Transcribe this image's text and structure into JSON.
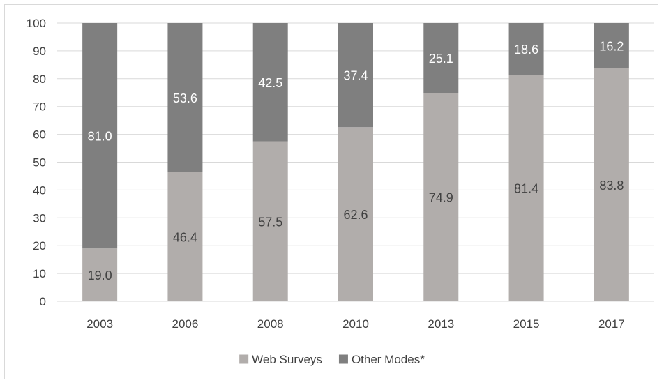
{
  "chart_data": {
    "type": "bar",
    "stacked": true,
    "title": "",
    "xlabel": "",
    "ylabel": "",
    "ylim": [
      0,
      100
    ],
    "y_ticks": [
      0,
      10,
      20,
      30,
      40,
      50,
      60,
      70,
      80,
      90,
      100
    ],
    "categories": [
      "2003",
      "2006",
      "2008",
      "2010",
      "2013",
      "2015",
      "2017"
    ],
    "series": [
      {
        "name": "Web Surveys",
        "color": "#b1adab",
        "values": [
          19.0,
          46.4,
          57.5,
          62.6,
          74.9,
          81.4,
          83.8
        ],
        "labels": [
          "19.0",
          "46.4",
          "57.5",
          "62.6",
          "74.9",
          "81.4",
          "83.8"
        ],
        "label_color": "#404040"
      },
      {
        "name": "Other Modes*",
        "color": "#7f7f7f",
        "values": [
          81.0,
          53.6,
          42.5,
          37.4,
          25.1,
          18.6,
          16.2
        ],
        "labels": [
          "81.0",
          "53.6",
          "42.5",
          "37.4",
          "25.1",
          "18.6",
          "16.2"
        ],
        "label_color": "#ffffff"
      }
    ],
    "grid": true,
    "legend_position": "bottom-center"
  }
}
